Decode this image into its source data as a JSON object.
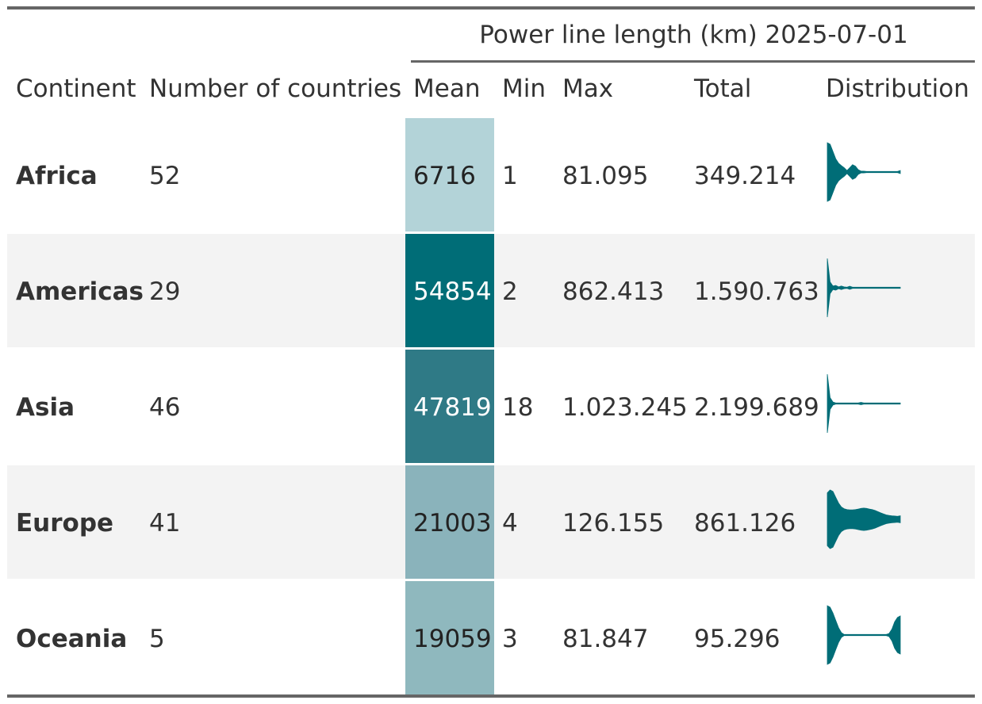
{
  "table": {
    "spanner": "Power line length (km) 2025-07-01",
    "columns": {
      "continent": "Continent",
      "countries": "Number of countries",
      "mean": "Mean",
      "min": "Min",
      "max": "Max",
      "total": "Total",
      "distribution": "Distribution"
    },
    "rows": [
      {
        "continent": "Africa",
        "countries": "52",
        "mean": "6716",
        "min": "1",
        "max": "81.095",
        "total": "349.214",
        "mean_fill": "#b3d3d8",
        "mean_text_color": "#222222"
      },
      {
        "continent": "Americas",
        "countries": "29",
        "mean": "54854",
        "min": "2",
        "max": "862.413",
        "total": "1.590.763",
        "mean_fill": "#006d77",
        "mean_text_color": "#ffffff"
      },
      {
        "continent": "Asia",
        "countries": "46",
        "mean": "47819",
        "min": "18",
        "max": "1.023.245",
        "total": "2.199.689",
        "mean_fill": "#2f7a86",
        "mean_text_color": "#ffffff"
      },
      {
        "continent": "Europe",
        "countries": "41",
        "mean": "21003",
        "min": "4",
        "max": "126.155",
        "total": "861.126",
        "mean_fill": "#8ab3bb",
        "mean_text_color": "#222222"
      },
      {
        "continent": "Oceania",
        "countries": "5",
        "mean": "19059",
        "min": "3",
        "max": "81.847",
        "total": "95.296",
        "mean_fill": "#8fb8be",
        "mean_text_color": "#222222"
      }
    ]
  },
  "colors": {
    "violin": "#006d77",
    "band": "#f3f3f3",
    "rule": "#666666"
  },
  "chart_data": {
    "type": "table",
    "title": "Power line length (km) 2025-07-01",
    "columns": [
      "Continent",
      "Number of countries",
      "Mean",
      "Min",
      "Max",
      "Total",
      "Distribution"
    ],
    "categories": [
      "Africa",
      "Americas",
      "Asia",
      "Europe",
      "Oceania"
    ],
    "series": [
      {
        "name": "Number of countries",
        "values": [
          52,
          29,
          46,
          41,
          5
        ]
      },
      {
        "name": "Mean",
        "values": [
          6716,
          54854,
          47819,
          21003,
          19059
        ]
      },
      {
        "name": "Min",
        "values": [
          1,
          2,
          18,
          4,
          3
        ]
      },
      {
        "name": "Max",
        "values": [
          81095,
          862413,
          1023245,
          126155,
          81847
        ]
      },
      {
        "name": "Total",
        "values": [
          349214,
          1590763,
          2199689,
          861126,
          95296
        ]
      }
    ],
    "distribution": {
      "type": "violin",
      "profiles": [
        [
          1,
          0.95,
          0.7,
          0.45,
          0.3,
          0.22,
          0.15,
          0.05,
          0.15,
          0.25,
          0.2,
          0.08,
          0.03,
          0.03,
          0.02,
          0.02,
          0.02,
          0.02,
          0.02,
          0.02,
          0.02,
          0.02,
          0.02,
          0.02,
          0.02,
          0.02,
          0.05
        ],
        [
          1,
          0.2,
          0.06,
          0.08,
          0.03,
          0.06,
          0.03,
          0.02,
          0.05,
          0.02,
          0.02,
          0.02,
          0.02,
          0.02,
          0.02,
          0.02,
          0.02,
          0.02,
          0.02,
          0.02,
          0.02,
          0.02,
          0.02,
          0.02,
          0.02,
          0.02,
          0.02
        ],
        [
          1,
          0.2,
          0.05,
          0.02,
          0.02,
          0.02,
          0.02,
          0.02,
          0.02,
          0.02,
          0.02,
          0.02,
          0.04,
          0.02,
          0.02,
          0.02,
          0.02,
          0.02,
          0.02,
          0.02,
          0.02,
          0.02,
          0.02,
          0.02,
          0.02,
          0.02,
          0.02
        ],
        [
          0.9,
          1,
          0.95,
          0.75,
          0.55,
          0.42,
          0.36,
          0.33,
          0.32,
          0.32,
          0.33,
          0.35,
          0.37,
          0.38,
          0.37,
          0.35,
          0.33,
          0.3,
          0.26,
          0.22,
          0.18,
          0.15,
          0.13,
          0.12,
          0.11,
          0.1,
          0.12
        ],
        [
          1,
          0.95,
          0.75,
          0.5,
          0.25,
          0.08,
          0.02,
          0.02,
          0.02,
          0.02,
          0.02,
          0.02,
          0.02,
          0.02,
          0.02,
          0.02,
          0.02,
          0.02,
          0.02,
          0.02,
          0.02,
          0.02,
          0.05,
          0.2,
          0.45,
          0.6,
          0.65
        ]
      ]
    }
  }
}
